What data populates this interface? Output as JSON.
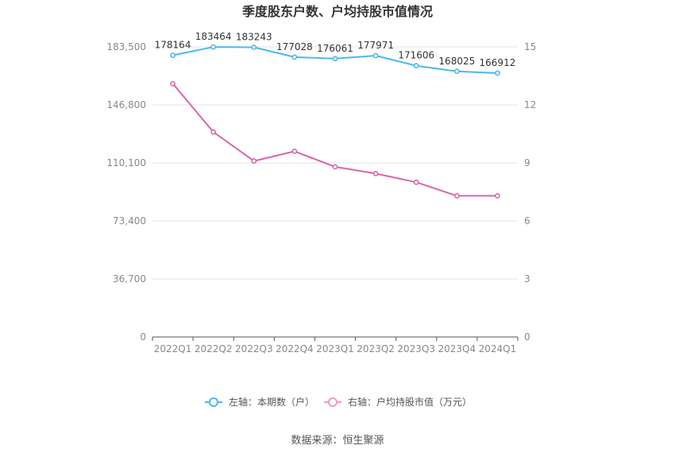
{
  "chart_data": {
    "type": "line",
    "title": "季度股东户数、户均持股市值情况",
    "categories": [
      "2022Q1",
      "2022Q2",
      "2022Q3",
      "2022Q4",
      "2023Q1",
      "2023Q2",
      "2023Q3",
      "2023Q4",
      "2024Q1"
    ],
    "left_axis": {
      "ticks": [
        "0",
        "36,700",
        "73,400",
        "110,100",
        "146,800",
        "183,500"
      ],
      "ylim": [
        0,
        183500
      ]
    },
    "right_axis": {
      "ticks": [
        "0",
        "3",
        "6",
        "9",
        "12",
        "15"
      ],
      "ylim": [
        0,
        15
      ]
    },
    "series": [
      {
        "name": "左轴：本期数（户）",
        "axis": "left",
        "color": "#4db8ec",
        "values": [
          178164,
          183464,
          183243,
          177028,
          176061,
          177971,
          171606,
          168025,
          166912
        ],
        "labels": [
          "178164",
          "183464",
          "183243",
          "177028",
          "176061",
          "177971",
          "171606",
          "168025",
          "166912"
        ]
      },
      {
        "name": "右轴：户均持股市值（万元）",
        "axis": "right",
        "color": "#d966ac",
        "values": [
          13.1,
          10.6,
          9.1,
          9.6,
          8.8,
          8.45,
          8.0,
          7.3,
          7.3
        ]
      }
    ],
    "grid": true,
    "legend_position": "bottom"
  },
  "source": "数据来源：恒生聚源"
}
